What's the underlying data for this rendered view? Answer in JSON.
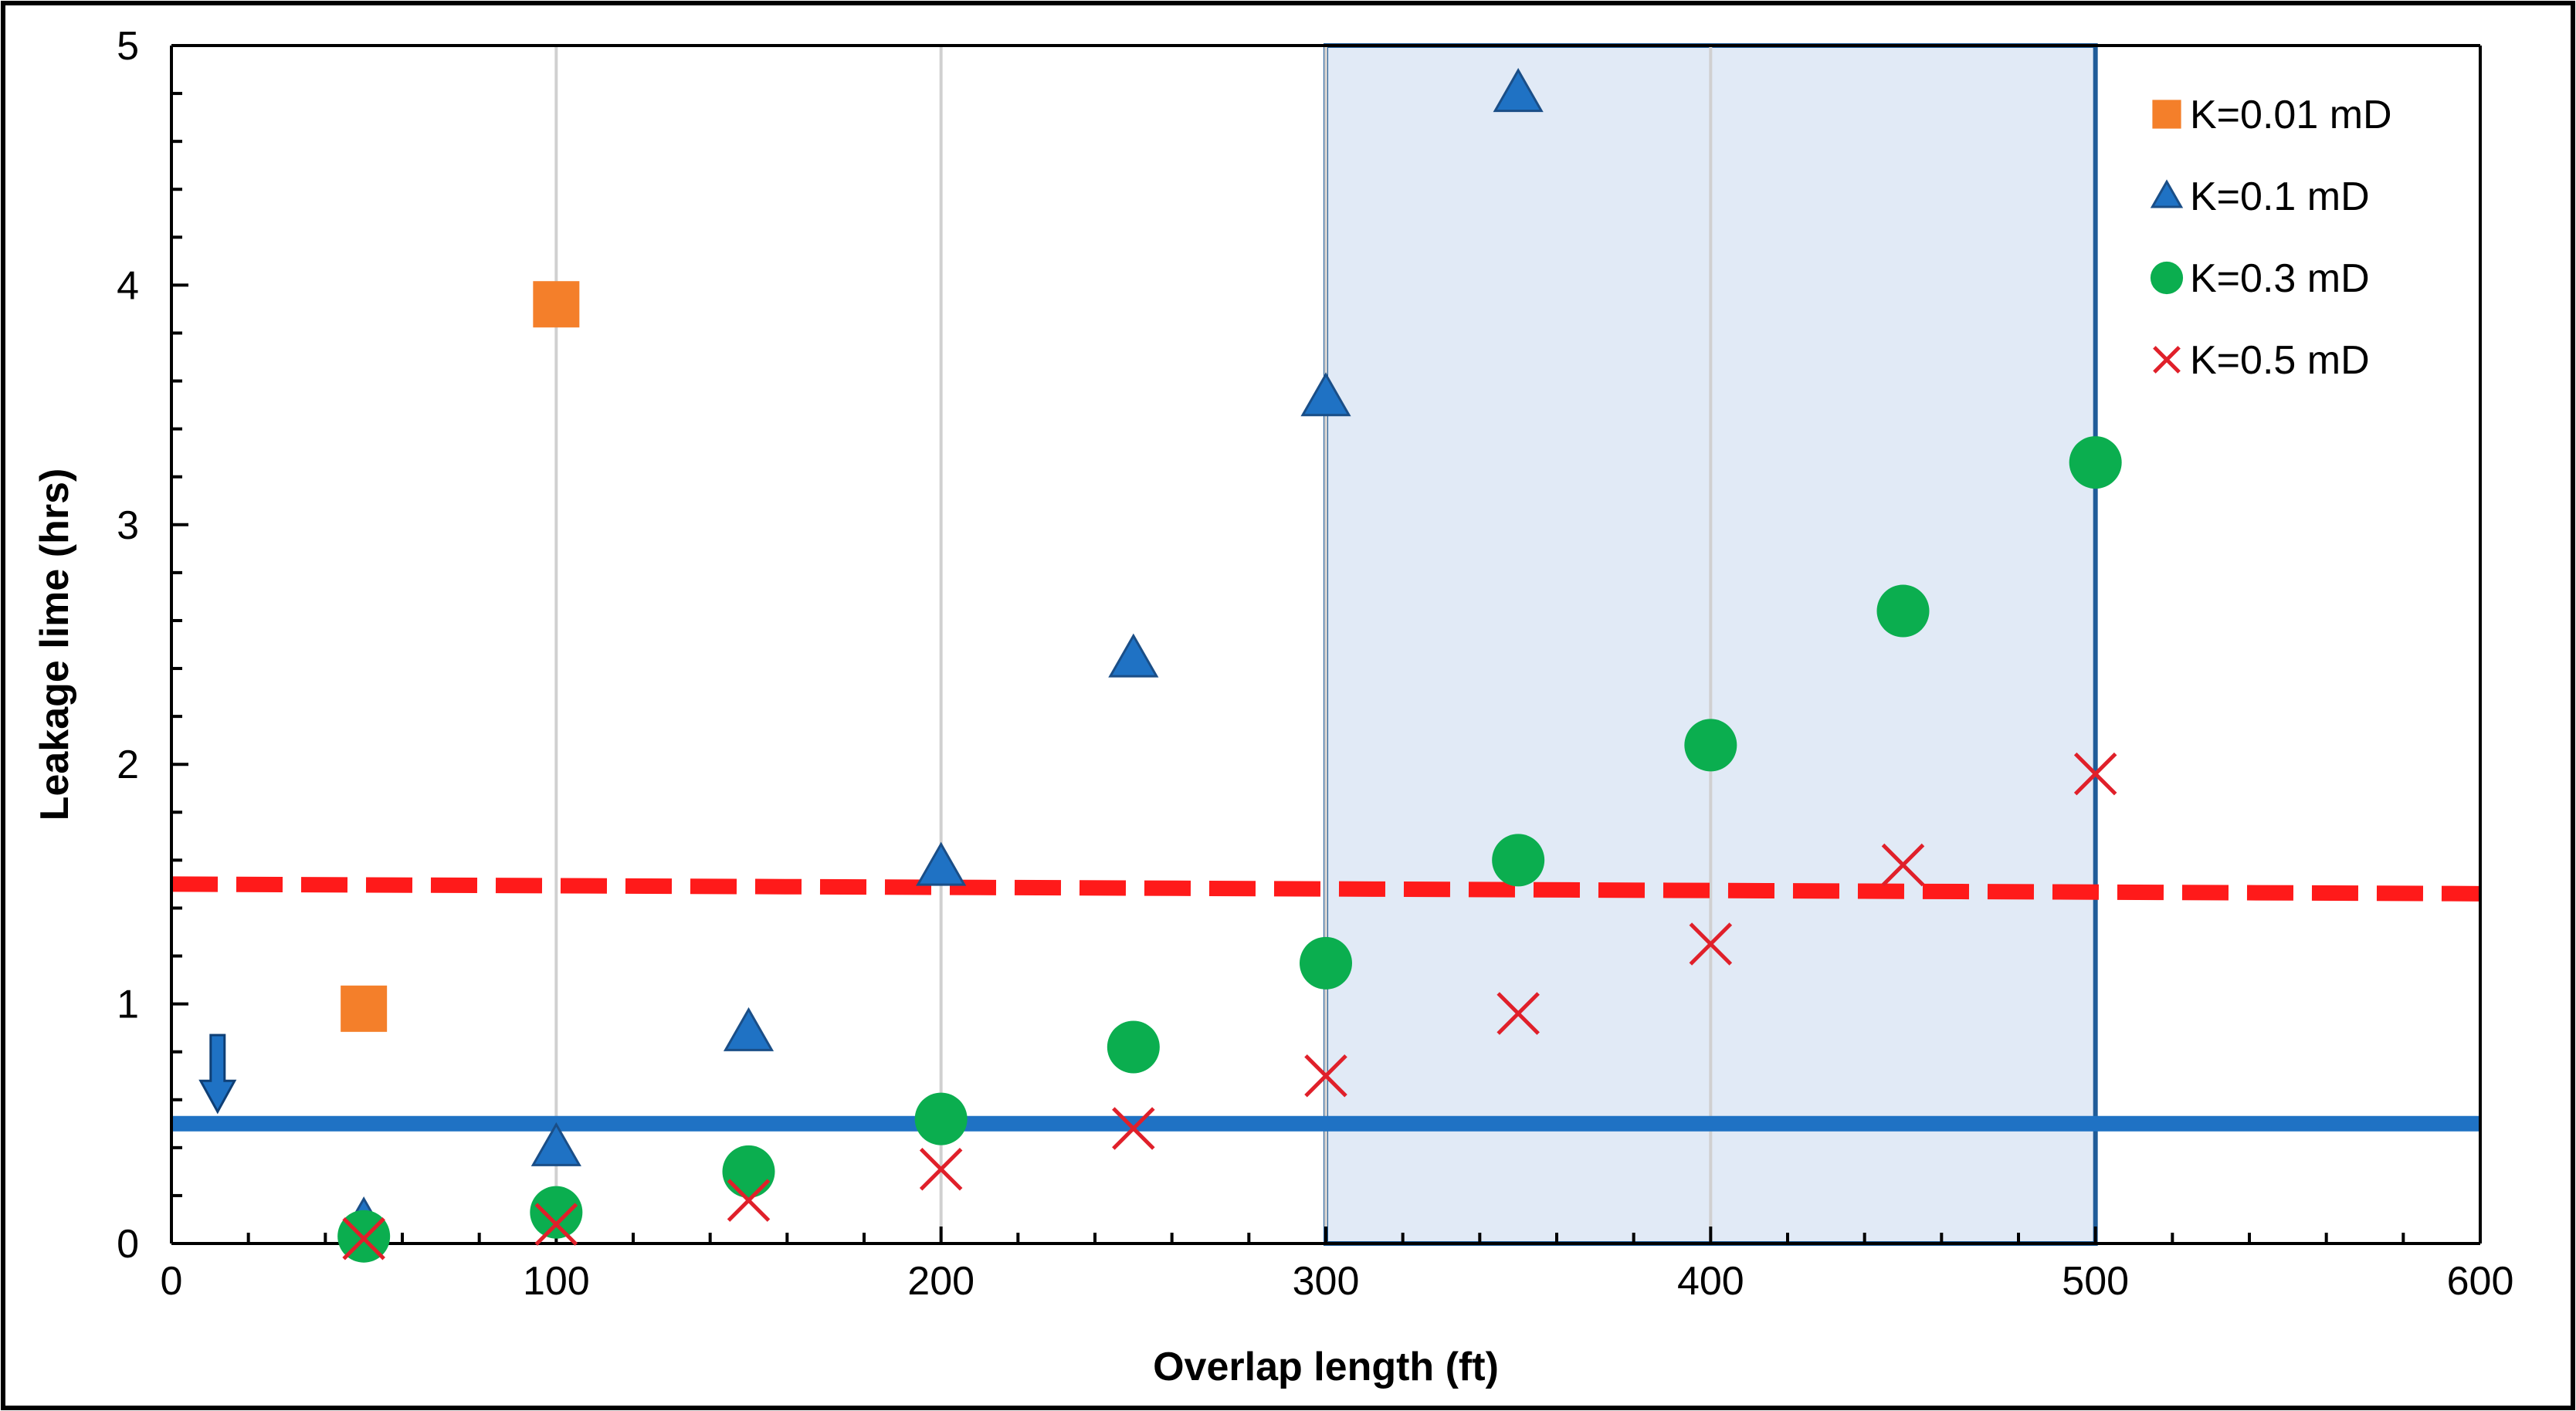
{
  "chart_data": {
    "type": "scatter",
    "title": "",
    "xlabel": "Overlap length (ft)",
    "ylabel": "Leakage lime (hrs)",
    "xlim": [
      0,
      600
    ],
    "ylim": [
      0,
      5
    ],
    "xticks": [
      0,
      100,
      200,
      300,
      400,
      500,
      600
    ],
    "yticks": [
      0,
      1,
      2,
      3,
      4,
      5
    ],
    "vertical_gridlines_at": [
      100,
      200,
      300,
      400
    ],
    "legend_position": "top-right",
    "series": [
      {
        "name": "K=0.01 mD",
        "marker": "square",
        "color": "#F47F2A",
        "x": [
          50,
          100
        ],
        "y": [
          0.98,
          3.92
        ]
      },
      {
        "name": "K=0.1 mD",
        "marker": "triangle",
        "color": "#1F72C4",
        "x": [
          50,
          100,
          150,
          200,
          250,
          300,
          350
        ],
        "y": [
          0.09,
          0.4,
          0.88,
          1.57,
          2.44,
          3.53,
          4.8
        ]
      },
      {
        "name": "K=0.3 mD",
        "marker": "circle",
        "color": "#0BAE4F",
        "x": [
          50,
          100,
          150,
          200,
          250,
          300,
          350,
          400,
          450,
          500
        ],
        "y": [
          0.03,
          0.13,
          0.3,
          0.52,
          0.82,
          1.17,
          1.6,
          2.08,
          2.64,
          3.26
        ]
      },
      {
        "name": "K=0.5 mD",
        "marker": "x",
        "color": "#E0202A",
        "x": [
          50,
          100,
          150,
          200,
          250,
          300,
          350,
          400,
          450,
          500
        ],
        "y": [
          0.02,
          0.08,
          0.18,
          0.31,
          0.48,
          0.7,
          0.96,
          1.25,
          1.58,
          1.96
        ]
      }
    ],
    "reference_lines": [
      {
        "style": "dashed",
        "color": "#FF1A1A",
        "x": [
          0,
          600
        ],
        "y": [
          1.5,
          1.46
        ]
      },
      {
        "style": "solid",
        "color": "#1F72C4",
        "x": [
          0,
          600
        ],
        "y": [
          0.5,
          0.5
        ]
      }
    ],
    "highlight_region": {
      "x": [
        300,
        500
      ],
      "y": [
        0,
        5
      ],
      "fill": "#DCE6F5",
      "stroke": "#1F5C99"
    },
    "arrow_annotation": {
      "x": 12,
      "y_from": 0.87,
      "y_to": 0.55,
      "color": "#1F72C4"
    }
  }
}
